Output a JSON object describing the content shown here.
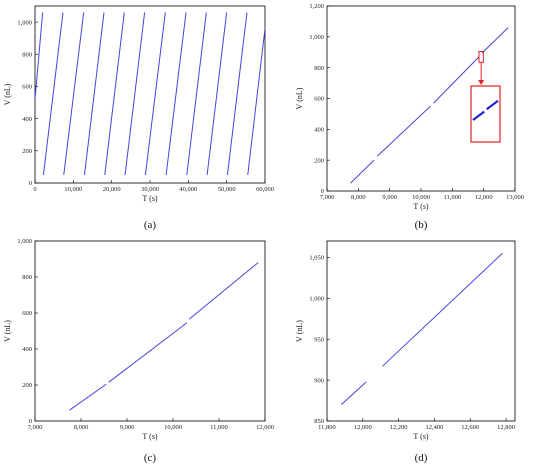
{
  "chart_data": [
    {
      "panel_label": "(a)",
      "type": "line",
      "xlabel": "T (s)",
      "ylabel": "V (nL)",
      "xlim": [
        0,
        60000
      ],
      "ylim": [
        0,
        1100
      ],
      "xticks": [
        0,
        10000,
        20000,
        30000,
        40000,
        50000,
        60000
      ],
      "xtick_labels": [
        "0",
        "10,000",
        "20,000",
        "30,000",
        "40,000",
        "50,000",
        "60,000"
      ],
      "yticks": [
        0,
        200,
        400,
        600,
        800,
        1000
      ],
      "ytick_labels": [
        "0",
        "200",
        "400",
        "600",
        "800",
        "1,000"
      ],
      "series": [
        {
          "segments": [
            [
              [
                0,
                520
              ],
              [
                2000,
                1060
              ]
            ],
            [
              [
                2200,
                50
              ],
              [
                7300,
                1060
              ]
            ],
            [
              [
                7500,
                50
              ],
              [
                12700,
                1060
              ]
            ],
            [
              [
                12900,
                50
              ],
              [
                18000,
                1060
              ]
            ],
            [
              [
                18200,
                50
              ],
              [
                23300,
                1060
              ]
            ],
            [
              [
                23500,
                50
              ],
              [
                28600,
                1060
              ]
            ],
            [
              [
                28800,
                50
              ],
              [
                34000,
                1060
              ]
            ],
            [
              [
                34200,
                50
              ],
              [
                39400,
                1060
              ]
            ],
            [
              [
                39600,
                50
              ],
              [
                44700,
                1060
              ]
            ],
            [
              [
                44900,
                50
              ],
              [
                50000,
                1060
              ]
            ],
            [
              [
                50200,
                50
              ],
              [
                55300,
                1060
              ]
            ],
            [
              [
                55500,
                50
              ],
              [
                60000,
                960
              ]
            ]
          ]
        }
      ]
    },
    {
      "panel_label": "(b)",
      "type": "line",
      "xlabel": "T (s)",
      "ylabel": "V (nL)",
      "xlim": [
        7000,
        13000
      ],
      "ylim": [
        0,
        1200
      ],
      "xticks": [
        7000,
        8000,
        9000,
        10000,
        11000,
        12000,
        13000
      ],
      "xtick_labels": [
        "7,000",
        "8,000",
        "9,000",
        "10,000",
        "11,000",
        "12,000",
        "13,000"
      ],
      "yticks": [
        0,
        200,
        400,
        600,
        800,
        1000,
        1200
      ],
      "ytick_labels": [
        "0",
        "200",
        "400",
        "600",
        "800",
        "1,000",
        "1,200"
      ],
      "series": [
        {
          "segments": [
            [
              [
                7750,
                50
              ],
              [
                8500,
                200
              ]
            ],
            [
              [
                8600,
                225
              ],
              [
                10300,
                550
              ]
            ],
            [
              [
                10400,
                570
              ],
              [
                11850,
                870
              ]
            ],
            [
              [
                11950,
                895
              ],
              [
                12780,
                1060
              ]
            ]
          ]
        }
      ],
      "inset": {
        "highlight_box": {
          "x": [
            11850,
            11990
          ],
          "y": [
            835,
            905
          ]
        },
        "zoom_segments": [
          [
            [
              0.0,
              0.0
            ],
            [
              0.45,
              0.35
            ]
          ],
          [
            [
              0.55,
              0.45
            ],
            [
              1.0,
              0.8
            ]
          ]
        ]
      }
    },
    {
      "panel_label": "(c)",
      "type": "line",
      "xlabel": "T (s)",
      "ylabel": "V (nL)",
      "xlim": [
        7000,
        12000
      ],
      "ylim": [
        0,
        1000
      ],
      "xticks": [
        7000,
        8000,
        9000,
        10000,
        11000,
        12000
      ],
      "xtick_labels": [
        "7,000",
        "8,000",
        "9,000",
        "10,000",
        "11,000",
        "12,000"
      ],
      "yticks": [
        0,
        200,
        400,
        600,
        800,
        1000
      ],
      "ytick_labels": [
        "0",
        "200",
        "400",
        "600",
        "800",
        "1,000"
      ],
      "series": [
        {
          "segments": [
            [
              [
                7750,
                60
              ],
              [
                8550,
                205
              ]
            ],
            [
              [
                8600,
                215
              ],
              [
                10300,
                545
              ]
            ],
            [
              [
                10350,
                565
              ],
              [
                11850,
                880
              ]
            ]
          ]
        }
      ]
    },
    {
      "panel_label": "(d)",
      "type": "line",
      "xlabel": "T (s)",
      "ylabel": "V (nL)",
      "xlim": [
        11800,
        12850
      ],
      "ylim": [
        850,
        1070
      ],
      "xticks": [
        11800,
        12000,
        12200,
        12400,
        12600,
        12800
      ],
      "xtick_labels": [
        "11,800",
        "12,000",
        "12,200",
        "12,400",
        "12,600",
        "12,800"
      ],
      "yticks": [
        850,
        900,
        950,
        1000,
        1050
      ],
      "ytick_labels": [
        "850",
        "900",
        "950",
        "1,000",
        "1,050"
      ],
      "series": [
        {
          "segments": [
            [
              [
                11880,
                870
              ],
              [
                12020,
                898
              ]
            ],
            [
              [
                12110,
                917
              ],
              [
                12780,
                1055
              ]
            ]
          ]
        }
      ]
    }
  ],
  "colors": {
    "series": "#4444dd",
    "inset": "#dd2222",
    "axis": "#000000"
  }
}
